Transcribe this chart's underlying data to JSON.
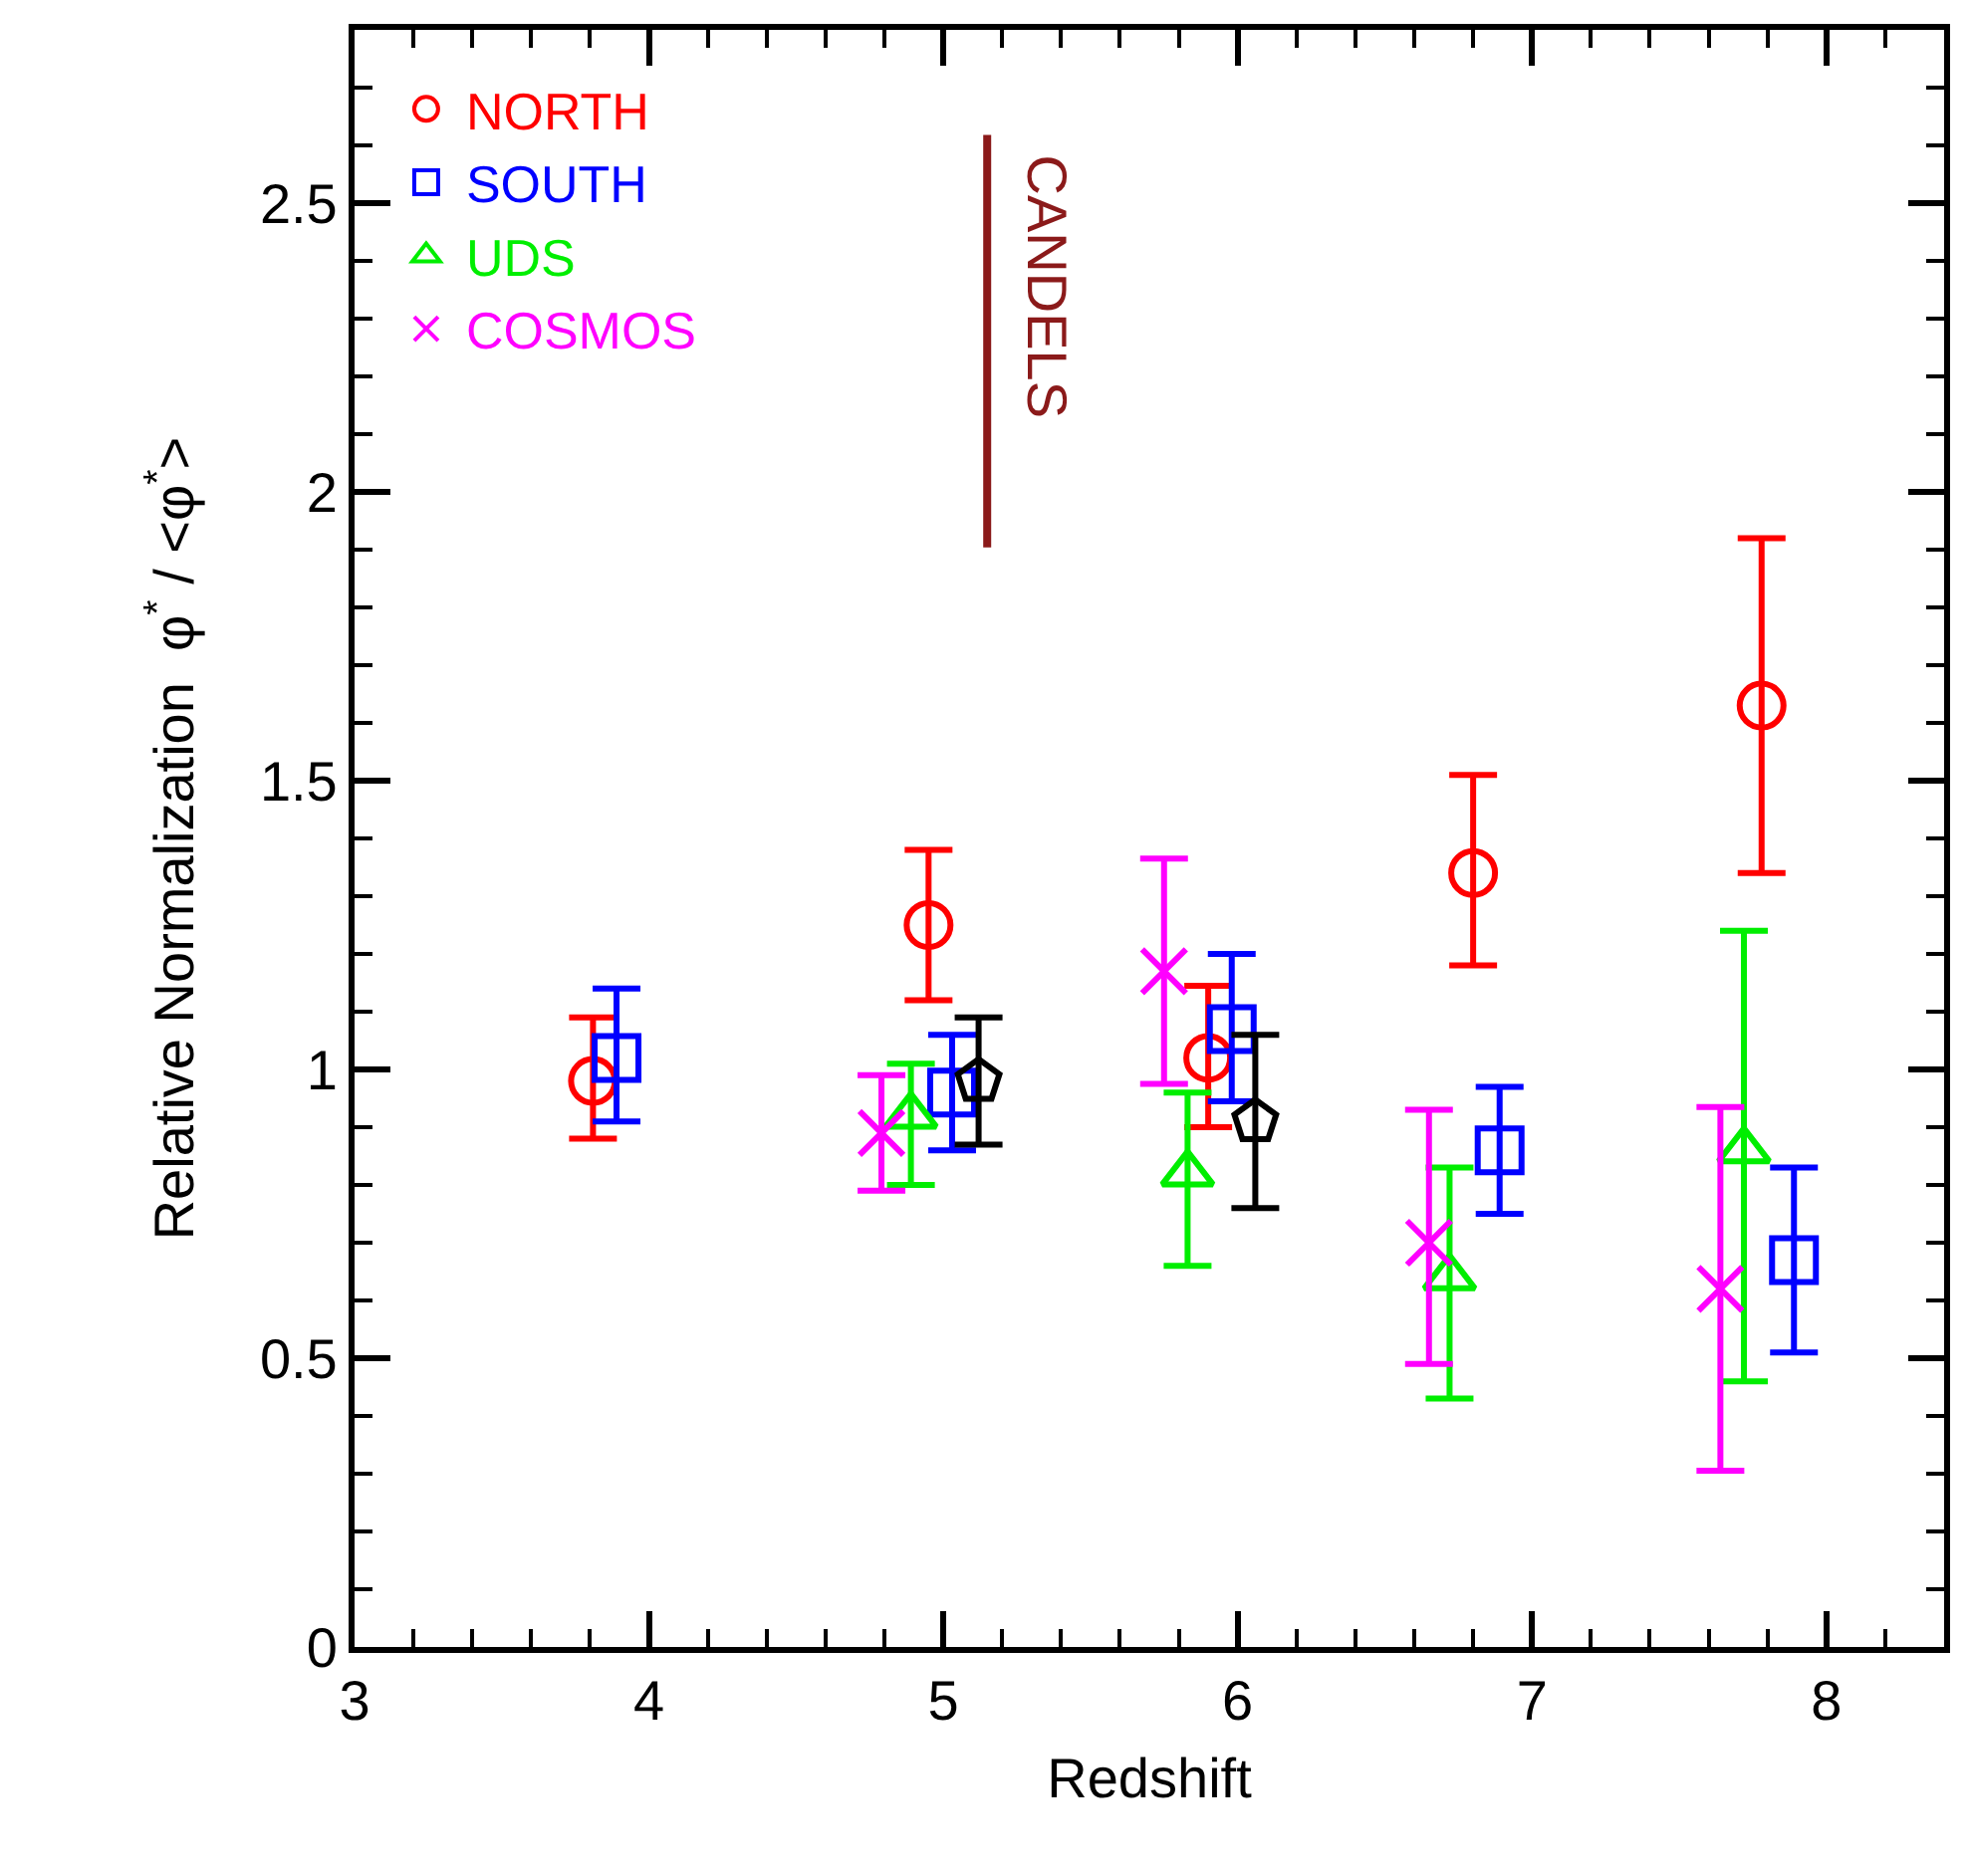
{
  "chart_data": {
    "type": "scatter",
    "xlabel": "Redshift",
    "ylabel": "Relative Normalization  φ$^{*}$ / <φ$^{*}$>",
    "xlim": [
      3,
      8.4
    ],
    "xticks": [
      3,
      4,
      5,
      6,
      7,
      8
    ],
    "ylim": [
      0,
      2.8
    ],
    "yticks": [
      0,
      0.5,
      1,
      1.5,
      2,
      2.5
    ],
    "legend": "top left",
    "annotations": [
      "CANDELS"
    ],
    "series": [
      {
        "name": "NORTH",
        "color": "#ff0000",
        "marker": "circle",
        "x": [
          3.81,
          4.95,
          5.9,
          6.8,
          7.78
        ],
        "values": [
          0.98,
          1.25,
          1.02,
          1.34,
          1.63
        ],
        "errors": [
          [
            0.88,
            1.09
          ],
          [
            1.12,
            1.38
          ],
          [
            0.9,
            1.145
          ],
          [
            1.18,
            1.51
          ],
          [
            1.34,
            1.92
          ]
        ]
      },
      {
        "name": "SOUTH",
        "color": "#0000ff",
        "marker": "square",
        "x": [
          3.89,
          5.03,
          5.98,
          6.89,
          7.89
        ],
        "values": [
          1.02,
          0.96,
          1.07,
          0.86,
          0.67
        ],
        "errors": [
          [
            0.91,
            1.14
          ],
          [
            0.86,
            1.06
          ],
          [
            0.945,
            1.2
          ],
          [
            0.75,
            0.97
          ],
          [
            0.51,
            0.83
          ]
        ]
      },
      {
        "name": "UDS",
        "color": "#00ee00",
        "marker": "triangle",
        "x": [
          4.89,
          5.83,
          6.72,
          7.72
        ],
        "values": [
          0.92,
          0.82,
          0.64,
          0.86
        ],
        "errors": [
          [
            0.8,
            1.01
          ],
          [
            0.66,
            0.96
          ],
          [
            0.43,
            0.83
          ],
          [
            0.46,
            1.24
          ]
        ]
      },
      {
        "name": "COSMOS",
        "color": "#ff00ff",
        "marker": "cross",
        "x": [
          4.79,
          5.75,
          6.65,
          7.64
        ],
        "values": [
          0.89,
          1.17,
          0.7,
          0.62
        ],
        "errors": [
          [
            0.79,
            0.99
          ],
          [
            0.975,
            1.365
          ],
          [
            0.49,
            0.93
          ],
          [
            0.305,
            0.935
          ]
        ]
      },
      {
        "color": "#000000",
        "x": [
          5.12,
          6.06
        ],
        "values": [
          0.98,
          0.91
        ],
        "errors": [
          [
            0.87,
            1.09
          ],
          [
            0.76,
            1.06
          ]
        ]
      }
    ]
  }
}
